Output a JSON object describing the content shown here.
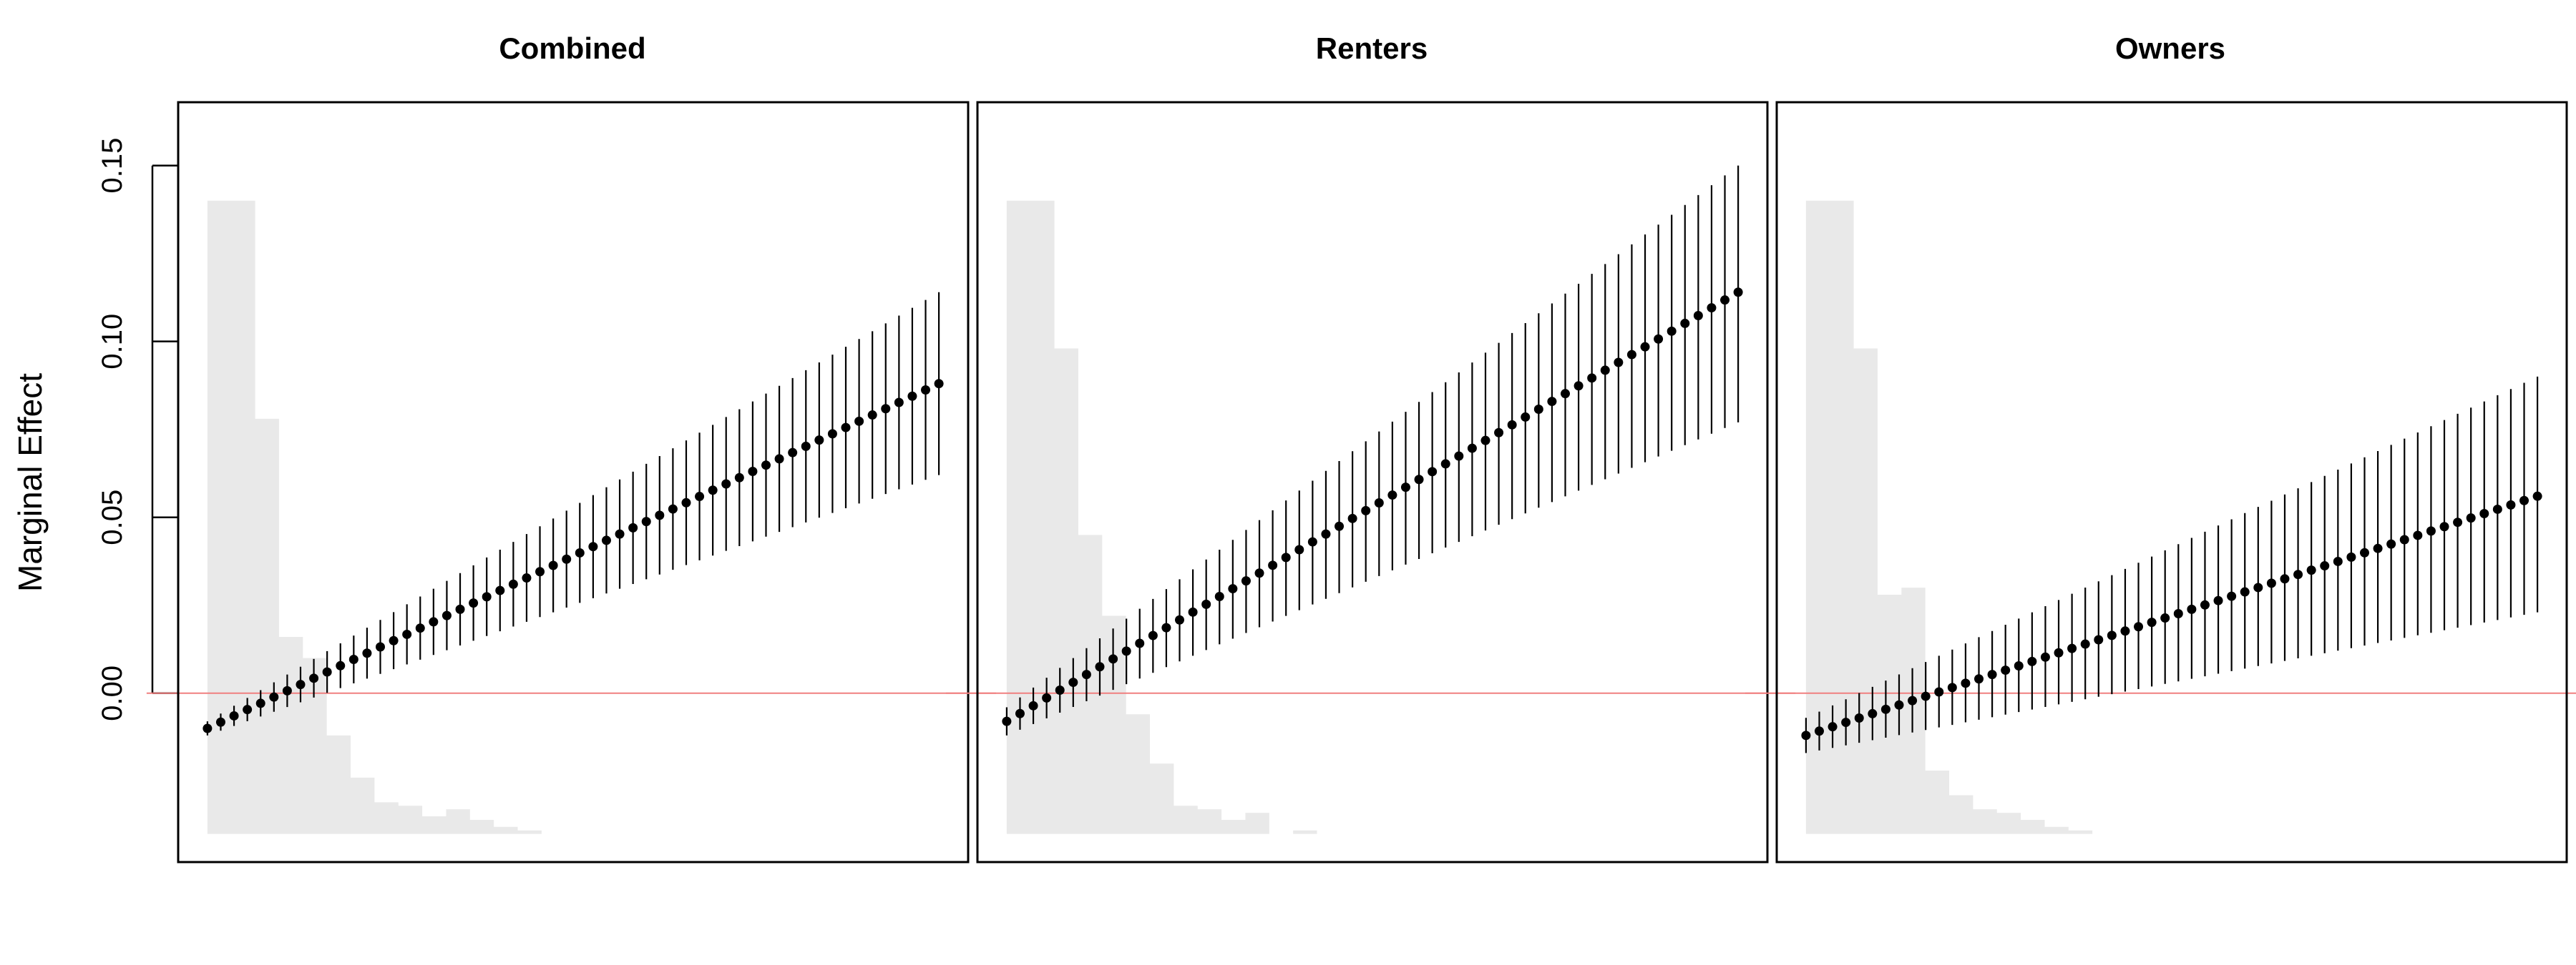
{
  "y_axis": {
    "label": "Marginal Effect",
    "ticks": [
      0.0,
      0.05,
      0.1,
      0.15
    ],
    "tick_labels": [
      "0.00",
      "0.05",
      "0.10",
      "0.15"
    ]
  },
  "colors": {
    "density_fill": "#e9e9e9",
    "reference_line": "#f08080",
    "points": "#000000",
    "frame": "#000000"
  },
  "chart_data": [
    {
      "type": "scatter",
      "title": "Combined",
      "xlabel": "",
      "ylabel": "Marginal Effect",
      "ylim": [
        -0.048,
        0.168
      ],
      "xlim": [
        -0.04,
        1.04
      ],
      "x": {
        "start": 0,
        "end": 1,
        "count": 56
      },
      "series": [
        {
          "estimate": {
            "start": -0.01,
            "end": 0.088
          },
          "lower": {
            "start": -0.012,
            "end": 0.062
          },
          "upper": {
            "start": -0.008,
            "end": 0.114
          }
        }
      ],
      "reference_line_y": 0,
      "density": [
        0.14,
        0.14,
        0.078,
        0.016,
        0.01,
        -0.012,
        -0.024,
        -0.031,
        -0.032,
        -0.035,
        -0.033,
        -0.036,
        -0.038,
        -0.039,
        -0.04,
        -0.04,
        -0.04,
        -0.04,
        -0.04
      ],
      "density_x_end": 0.62
    },
    {
      "type": "scatter",
      "title": "Renters",
      "xlabel": "",
      "ylabel": "",
      "ylim": [
        -0.048,
        0.168
      ],
      "xlim": [
        -0.04,
        1.04
      ],
      "x": {
        "start": 0,
        "end": 1,
        "count": 56
      },
      "series": [
        {
          "estimate": {
            "start": -0.008,
            "end": 0.114
          },
          "lower": {
            "start": -0.012,
            "end": 0.077
          },
          "upper": {
            "start": -0.004,
            "end": 0.15
          }
        }
      ],
      "reference_line_y": 0,
      "density": [
        0.14,
        0.14,
        0.098,
        0.045,
        0.022,
        -0.006,
        -0.02,
        -0.032,
        -0.033,
        -0.036,
        -0.034,
        -0.04,
        -0.039,
        -0.04,
        -0.04,
        -0.04,
        -0.04,
        -0.04,
        -0.04
      ],
      "density_x_end": 0.62
    },
    {
      "type": "scatter",
      "title": "Owners",
      "xlabel": "",
      "ylabel": "",
      "ylim": [
        -0.048,
        0.168
      ],
      "xlim": [
        -0.04,
        1.04
      ],
      "x": {
        "start": 0,
        "end": 1,
        "count": 56
      },
      "series": [
        {
          "estimate": {
            "start": -0.012,
            "end": 0.056
          },
          "lower": {
            "start": -0.017,
            "end": 0.023
          },
          "upper": {
            "start": -0.007,
            "end": 0.09
          }
        }
      ],
      "reference_line_y": 0,
      "density": [
        0.14,
        0.14,
        0.098,
        0.028,
        0.03,
        -0.022,
        -0.029,
        -0.033,
        -0.034,
        -0.036,
        -0.038,
        -0.039,
        -0.04,
        -0.04,
        -0.04,
        -0.04,
        -0.04,
        -0.04,
        -0.04
      ],
      "density_x_end": 0.62
    }
  ]
}
